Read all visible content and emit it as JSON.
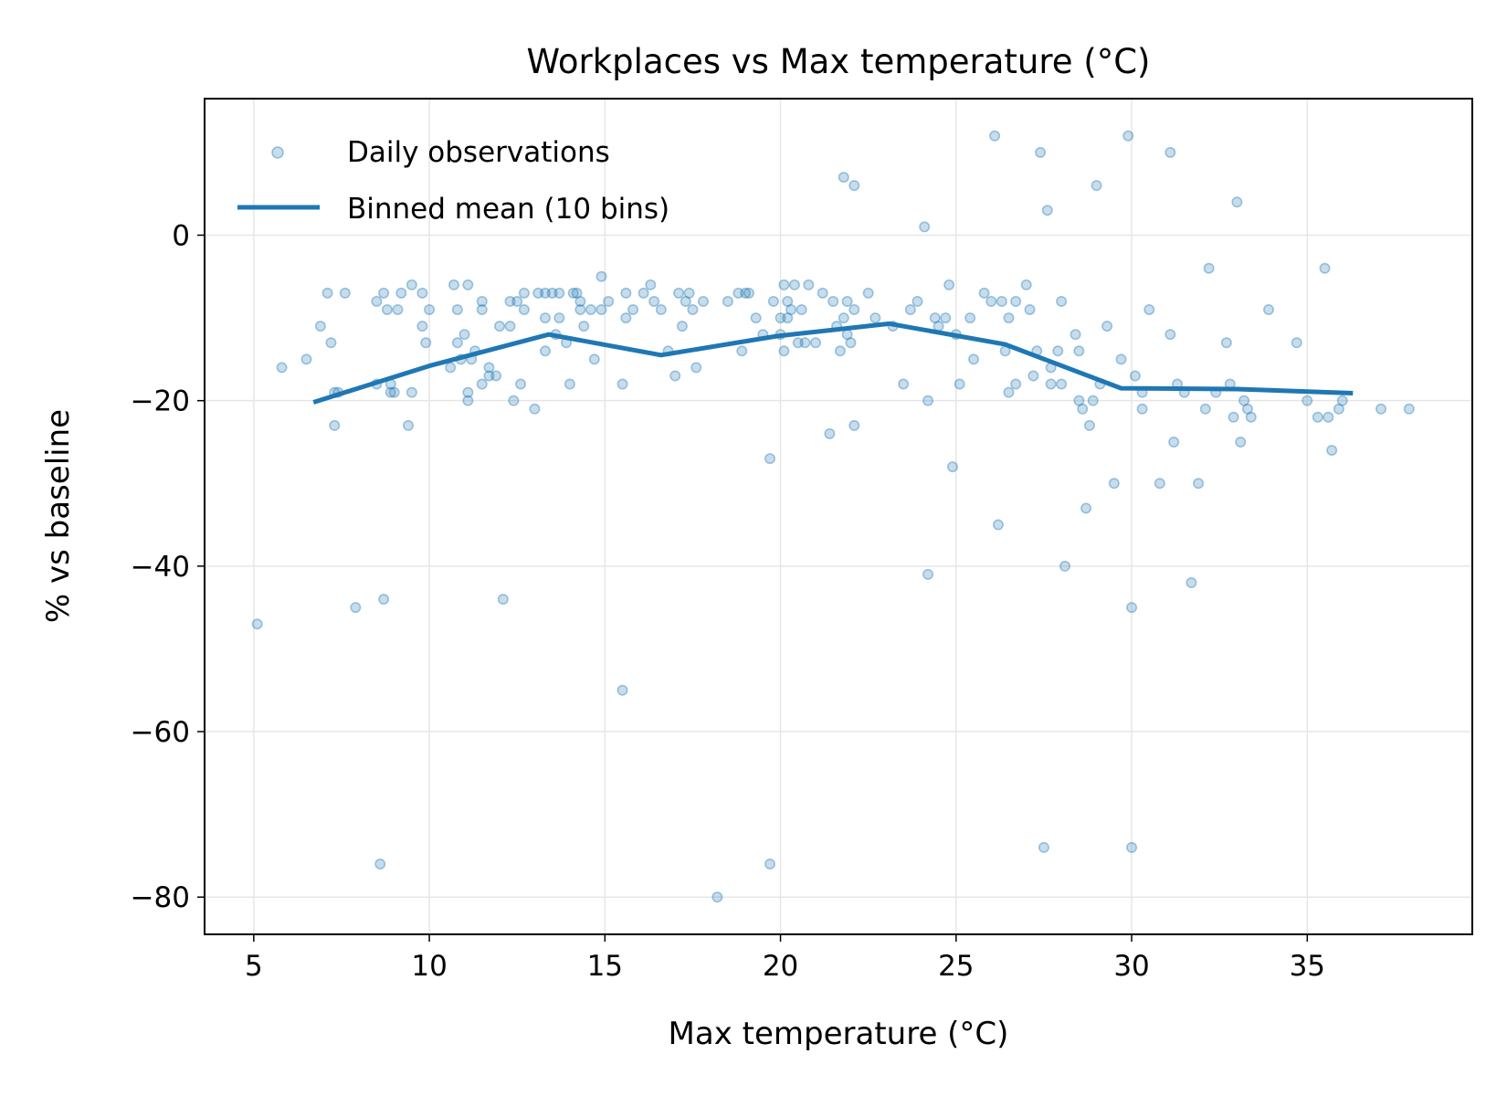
{
  "chart_data": {
    "type": "scatter",
    "title": "Workplaces vs Max temperature (°C)",
    "xlabel": "Max temperature (°C)",
    "ylabel": "% vs baseline",
    "xlim": [
      3.6,
      39.7
    ],
    "ylim": [
      -84.5,
      16.5
    ],
    "x_ticks": [
      5,
      10,
      15,
      20,
      25,
      30,
      35
    ],
    "x_tick_labels": [
      "5",
      "10",
      "15",
      "20",
      "25",
      "30",
      "35"
    ],
    "y_ticks": [
      0,
      -20,
      -40,
      -60,
      -80
    ],
    "y_tick_labels": [
      "0",
      "−20",
      "−40",
      "−60",
      "−80"
    ],
    "grid": true,
    "legend": {
      "placement": "upper-left",
      "entries": [
        "Daily observations",
        "Binned mean (10 bins)"
      ]
    },
    "colors": {
      "series": "#1f77b4"
    },
    "series": [
      {
        "name": "Daily observations",
        "kind": "scatter",
        "points": [
          [
            5.1,
            -47
          ],
          [
            5.8,
            -16
          ],
          [
            6.5,
            -15
          ],
          [
            6.9,
            -11
          ],
          [
            7.1,
            -7
          ],
          [
            7.2,
            -13
          ],
          [
            7.3,
            -19
          ],
          [
            7.3,
            -23
          ],
          [
            7.4,
            -19
          ],
          [
            7.6,
            -7
          ],
          [
            7.9,
            -45
          ],
          [
            8.5,
            -8
          ],
          [
            8.5,
            -18
          ],
          [
            8.6,
            -76
          ],
          [
            8.7,
            -7
          ],
          [
            8.7,
            -44
          ],
          [
            8.8,
            -9
          ],
          [
            8.9,
            -18
          ],
          [
            8.9,
            -19
          ],
          [
            9.0,
            -19
          ],
          [
            9.1,
            -9
          ],
          [
            9.2,
            -7
          ],
          [
            9.4,
            -23
          ],
          [
            9.5,
            -19
          ],
          [
            9.5,
            -6
          ],
          [
            9.8,
            -7
          ],
          [
            9.8,
            -11
          ],
          [
            9.9,
            -13
          ],
          [
            10.0,
            -9
          ],
          [
            10.6,
            -16
          ],
          [
            10.7,
            -6
          ],
          [
            10.8,
            -9
          ],
          [
            10.8,
            -13
          ],
          [
            10.9,
            -15
          ],
          [
            11.0,
            -12
          ],
          [
            11.1,
            -6
          ],
          [
            11.1,
            -19
          ],
          [
            11.1,
            -20
          ],
          [
            11.2,
            -15
          ],
          [
            11.3,
            -14
          ],
          [
            11.5,
            -9
          ],
          [
            11.5,
            -8
          ],
          [
            11.5,
            -18
          ],
          [
            11.7,
            -16
          ],
          [
            11.7,
            -17
          ],
          [
            11.9,
            -17
          ],
          [
            12.0,
            -11
          ],
          [
            12.1,
            -44
          ],
          [
            12.3,
            -11
          ],
          [
            12.3,
            -8
          ],
          [
            12.4,
            -20
          ],
          [
            12.5,
            -8
          ],
          [
            12.6,
            -18
          ],
          [
            12.7,
            -9
          ],
          [
            12.7,
            -7
          ],
          [
            13.0,
            -21
          ],
          [
            13.1,
            -7
          ],
          [
            13.3,
            -7
          ],
          [
            13.3,
            -14
          ],
          [
            13.3,
            -10
          ],
          [
            13.5,
            -7
          ],
          [
            13.6,
            -12
          ],
          [
            13.7,
            -10
          ],
          [
            13.7,
            -7
          ],
          [
            13.9,
            -13
          ],
          [
            14.0,
            -18
          ],
          [
            14.1,
            -7
          ],
          [
            14.2,
            -7
          ],
          [
            14.3,
            -9
          ],
          [
            14.3,
            -8
          ],
          [
            14.4,
            -11
          ],
          [
            14.6,
            -9
          ],
          [
            14.7,
            -15
          ],
          [
            14.9,
            -9
          ],
          [
            14.9,
            -5
          ],
          [
            15.1,
            -8
          ],
          [
            15.5,
            -18
          ],
          [
            15.5,
            -55
          ],
          [
            15.6,
            -7
          ],
          [
            15.6,
            -10
          ],
          [
            15.8,
            -9
          ],
          [
            16.1,
            -7
          ],
          [
            16.3,
            -6
          ],
          [
            16.4,
            -8
          ],
          [
            16.6,
            -9
          ],
          [
            16.8,
            -14
          ],
          [
            17.0,
            -17
          ],
          [
            17.1,
            -7
          ],
          [
            17.2,
            -11
          ],
          [
            17.3,
            -8
          ],
          [
            17.4,
            -7
          ],
          [
            17.5,
            -9
          ],
          [
            17.6,
            -16
          ],
          [
            17.8,
            -8
          ],
          [
            18.2,
            -80
          ],
          [
            18.5,
            -8
          ],
          [
            18.8,
            -7
          ],
          [
            18.9,
            -14
          ],
          [
            19.0,
            -7
          ],
          [
            19.1,
            -7
          ],
          [
            19.3,
            -10
          ],
          [
            19.5,
            -12
          ],
          [
            19.7,
            -76
          ],
          [
            19.7,
            -27
          ],
          [
            19.8,
            -8
          ],
          [
            20.0,
            -10
          ],
          [
            20.0,
            -12
          ],
          [
            20.1,
            -6
          ],
          [
            20.1,
            -14
          ],
          [
            20.2,
            -10
          ],
          [
            20.2,
            -8
          ],
          [
            20.3,
            -9
          ],
          [
            20.4,
            -6
          ],
          [
            20.5,
            -13
          ],
          [
            20.6,
            -9
          ],
          [
            20.7,
            -13
          ],
          [
            20.8,
            -6
          ],
          [
            21.0,
            -13
          ],
          [
            21.2,
            -7
          ],
          [
            21.4,
            -24
          ],
          [
            21.5,
            -8
          ],
          [
            21.6,
            -11
          ],
          [
            21.7,
            -14
          ],
          [
            21.8,
            7
          ],
          [
            21.8,
            -10
          ],
          [
            21.9,
            -12
          ],
          [
            21.9,
            -8
          ],
          [
            22.0,
            -13
          ],
          [
            22.1,
            -9
          ],
          [
            22.1,
            -23
          ],
          [
            22.1,
            6
          ],
          [
            22.5,
            -7
          ],
          [
            22.7,
            -10
          ],
          [
            23.2,
            -11
          ],
          [
            23.5,
            -18
          ],
          [
            23.7,
            -9
          ],
          [
            23.9,
            -8
          ],
          [
            24.1,
            1
          ],
          [
            24.2,
            -41
          ],
          [
            24.2,
            -20
          ],
          [
            24.4,
            -10
          ],
          [
            24.5,
            -11
          ],
          [
            24.7,
            -10
          ],
          [
            24.8,
            -6
          ],
          [
            24.9,
            -28
          ],
          [
            25.0,
            -12
          ],
          [
            25.1,
            -18
          ],
          [
            25.4,
            -10
          ],
          [
            25.5,
            -15
          ],
          [
            25.8,
            -7
          ],
          [
            26.0,
            -8
          ],
          [
            26.1,
            12
          ],
          [
            26.2,
            -35
          ],
          [
            26.3,
            -8
          ],
          [
            26.4,
            -14
          ],
          [
            26.5,
            -10
          ],
          [
            26.5,
            -19
          ],
          [
            26.7,
            -8
          ],
          [
            26.7,
            -18
          ],
          [
            27.0,
            -6
          ],
          [
            27.1,
            -9
          ],
          [
            27.2,
            -17
          ],
          [
            27.3,
            -14
          ],
          [
            27.4,
            10
          ],
          [
            27.5,
            -74
          ],
          [
            27.6,
            3
          ],
          [
            27.7,
            -16
          ],
          [
            27.7,
            -18
          ],
          [
            27.9,
            -14
          ],
          [
            28.0,
            -8
          ],
          [
            28.0,
            -18
          ],
          [
            28.1,
            -40
          ],
          [
            28.4,
            -12
          ],
          [
            28.5,
            -20
          ],
          [
            28.5,
            -14
          ],
          [
            28.6,
            -21
          ],
          [
            28.7,
            -33
          ],
          [
            28.8,
            -23
          ],
          [
            28.9,
            -20
          ],
          [
            29.0,
            6
          ],
          [
            29.1,
            -18
          ],
          [
            29.3,
            -11
          ],
          [
            29.5,
            -30
          ],
          [
            29.7,
            -15
          ],
          [
            29.9,
            12
          ],
          [
            30.0,
            -74
          ],
          [
            30.0,
            -45
          ],
          [
            30.1,
            -17
          ],
          [
            30.3,
            -19
          ],
          [
            30.3,
            -21
          ],
          [
            30.5,
            -9
          ],
          [
            30.8,
            -30
          ],
          [
            31.1,
            10
          ],
          [
            31.1,
            -12
          ],
          [
            31.2,
            -25
          ],
          [
            31.3,
            -18
          ],
          [
            31.5,
            -19
          ],
          [
            31.7,
            -42
          ],
          [
            31.9,
            -30
          ],
          [
            32.1,
            -21
          ],
          [
            32.2,
            -4
          ],
          [
            32.4,
            -19
          ],
          [
            32.7,
            -13
          ],
          [
            32.8,
            -18
          ],
          [
            32.9,
            -22
          ],
          [
            33.0,
            4
          ],
          [
            33.1,
            -25
          ],
          [
            33.2,
            -20
          ],
          [
            33.3,
            -21
          ],
          [
            33.4,
            -22
          ],
          [
            33.9,
            -9
          ],
          [
            34.7,
            -13
          ],
          [
            35.0,
            -20
          ],
          [
            35.3,
            -22
          ],
          [
            35.5,
            -4
          ],
          [
            35.6,
            -22
          ],
          [
            35.7,
            -26
          ],
          [
            35.9,
            -21
          ],
          [
            36.0,
            -20
          ],
          [
            37.1,
            -21
          ],
          [
            37.9,
            -21
          ]
        ]
      },
      {
        "name": "Binned mean (10 bins)",
        "kind": "line",
        "x": [
          6.7,
          10.0,
          13.4,
          16.6,
          19.9,
          23.1,
          26.4,
          29.7,
          33.0,
          36.3
        ],
        "y": [
          -20.2,
          -15.8,
          -12.0,
          -14.5,
          -12.2,
          -10.7,
          -13.2,
          -18.5,
          -18.6,
          -19.1
        ]
      }
    ]
  }
}
